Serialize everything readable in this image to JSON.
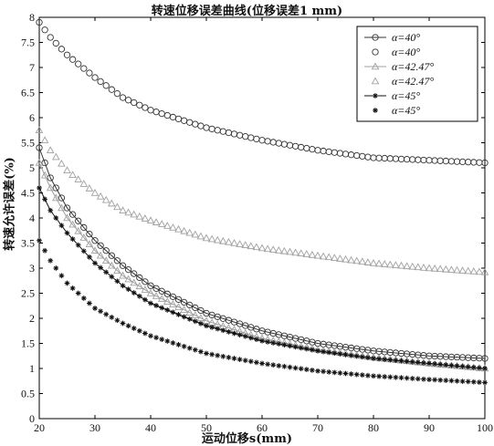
{
  "chart_data": {
    "type": "scatter",
    "title": "转速位移误差曲线(位移误差1 mm)",
    "xlabel": "运动位移s(mm)",
    "ylabel": "转速允许误差(%)",
    "xlim": [
      20,
      100
    ],
    "ylim": [
      0,
      8
    ],
    "xticks": [
      "20",
      "30",
      "40",
      "50",
      "60",
      "70",
      "80",
      "90",
      "100"
    ],
    "yticks": [
      "0",
      "0.5",
      "1",
      "1.5",
      "2",
      "2.5",
      "3",
      "3.5",
      "4",
      "4.5",
      "5",
      "5.5",
      "6",
      "6.5",
      "7",
      "7.5",
      "8"
    ],
    "grid": false,
    "legend_position": "top-right",
    "series": [
      {
        "name": "α=40°",
        "marker": "circle",
        "line": true,
        "color": "#333333",
        "x": [
          20,
          22,
          25,
          30,
          35,
          40,
          50,
          60,
          70,
          80,
          90,
          100
        ],
        "y": [
          5.4,
          4.8,
          4.2,
          3.55,
          3.05,
          2.65,
          2.1,
          1.75,
          1.5,
          1.35,
          1.25,
          1.2
        ]
      },
      {
        "name": "α=40°",
        "marker": "circle",
        "line": false,
        "color": "#333333",
        "x": [
          20,
          22,
          25,
          30,
          35,
          40,
          50,
          60,
          70,
          80,
          90,
          100
        ],
        "y": [
          7.9,
          7.6,
          7.25,
          6.8,
          6.4,
          6.15,
          5.8,
          5.55,
          5.35,
          5.2,
          5.15,
          5.1
        ]
      },
      {
        "name": "α=42.47°",
        "marker": "triangle",
        "line": true,
        "color": "#a0a0a0",
        "x": [
          20,
          22,
          25,
          30,
          35,
          40,
          50,
          60,
          70,
          80,
          90,
          100
        ],
        "y": [
          5.1,
          4.6,
          4.0,
          3.35,
          2.85,
          2.5,
          1.95,
          1.6,
          1.38,
          1.22,
          1.1,
          1.0
        ]
      },
      {
        "name": "α=42.47°",
        "marker": "triangle",
        "line": false,
        "color": "#a0a0a0",
        "x": [
          20,
          22,
          25,
          30,
          35,
          40,
          50,
          60,
          70,
          80,
          90,
          100
        ],
        "y": [
          5.75,
          5.35,
          4.95,
          4.5,
          4.15,
          3.95,
          3.6,
          3.4,
          3.25,
          3.1,
          3.0,
          2.92
        ]
      },
      {
        "name": "α=45°",
        "marker": "star",
        "line": true,
        "color": "#111111",
        "x": [
          20,
          22,
          25,
          30,
          35,
          40,
          50,
          60,
          70,
          80,
          90,
          100
        ],
        "y": [
          4.6,
          4.15,
          3.7,
          3.1,
          2.65,
          2.3,
          1.85,
          1.55,
          1.35,
          1.2,
          1.1,
          1.0
        ]
      },
      {
        "name": "α=45°",
        "marker": "star",
        "line": false,
        "color": "#111111",
        "x": [
          20,
          22,
          25,
          30,
          35,
          40,
          50,
          60,
          70,
          80,
          90,
          100
        ],
        "y": [
          3.55,
          3.15,
          2.7,
          2.2,
          1.9,
          1.65,
          1.3,
          1.1,
          0.95,
          0.85,
          0.78,
          0.72
        ]
      }
    ]
  }
}
